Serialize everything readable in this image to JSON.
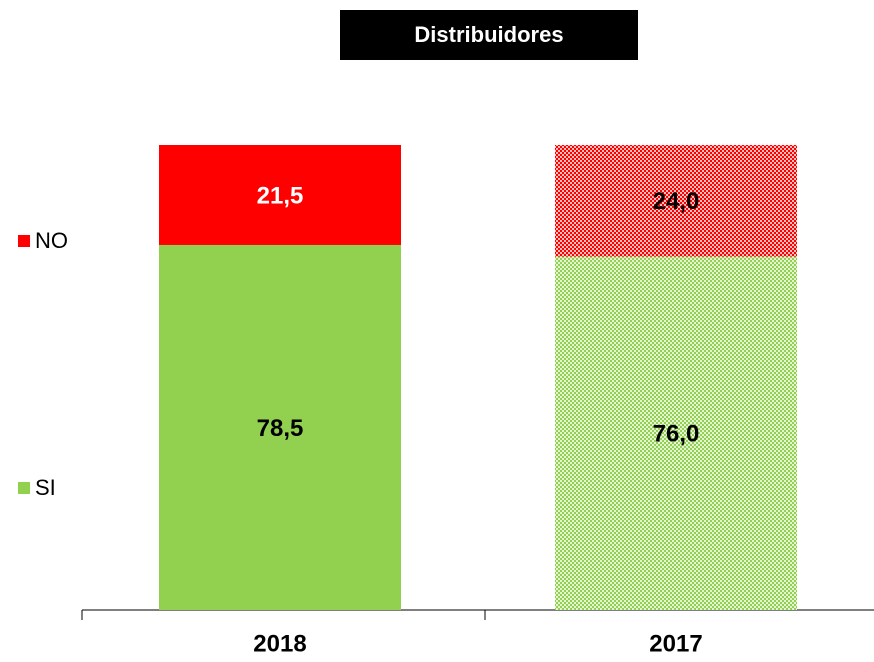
{
  "chart_data": {
    "type": "stacked_bar",
    "title": "Distribuidores",
    "categories": [
      "2018",
      "2017"
    ],
    "patterned": [
      false,
      true
    ],
    "series": [
      {
        "name": "SI",
        "color": "#92d050",
        "values": [
          78.5,
          76.0
        ],
        "value_labels": [
          "78,5",
          "76,0"
        ],
        "label_colors": [
          "#000000",
          "#000000"
        ]
      },
      {
        "name": "NO",
        "color": "#ff0000",
        "values": [
          21.5,
          24.0
        ],
        "value_labels": [
          "21,5",
          "24,0"
        ],
        "label_colors": [
          "#ffffff",
          "#000000"
        ]
      }
    ]
  }
}
